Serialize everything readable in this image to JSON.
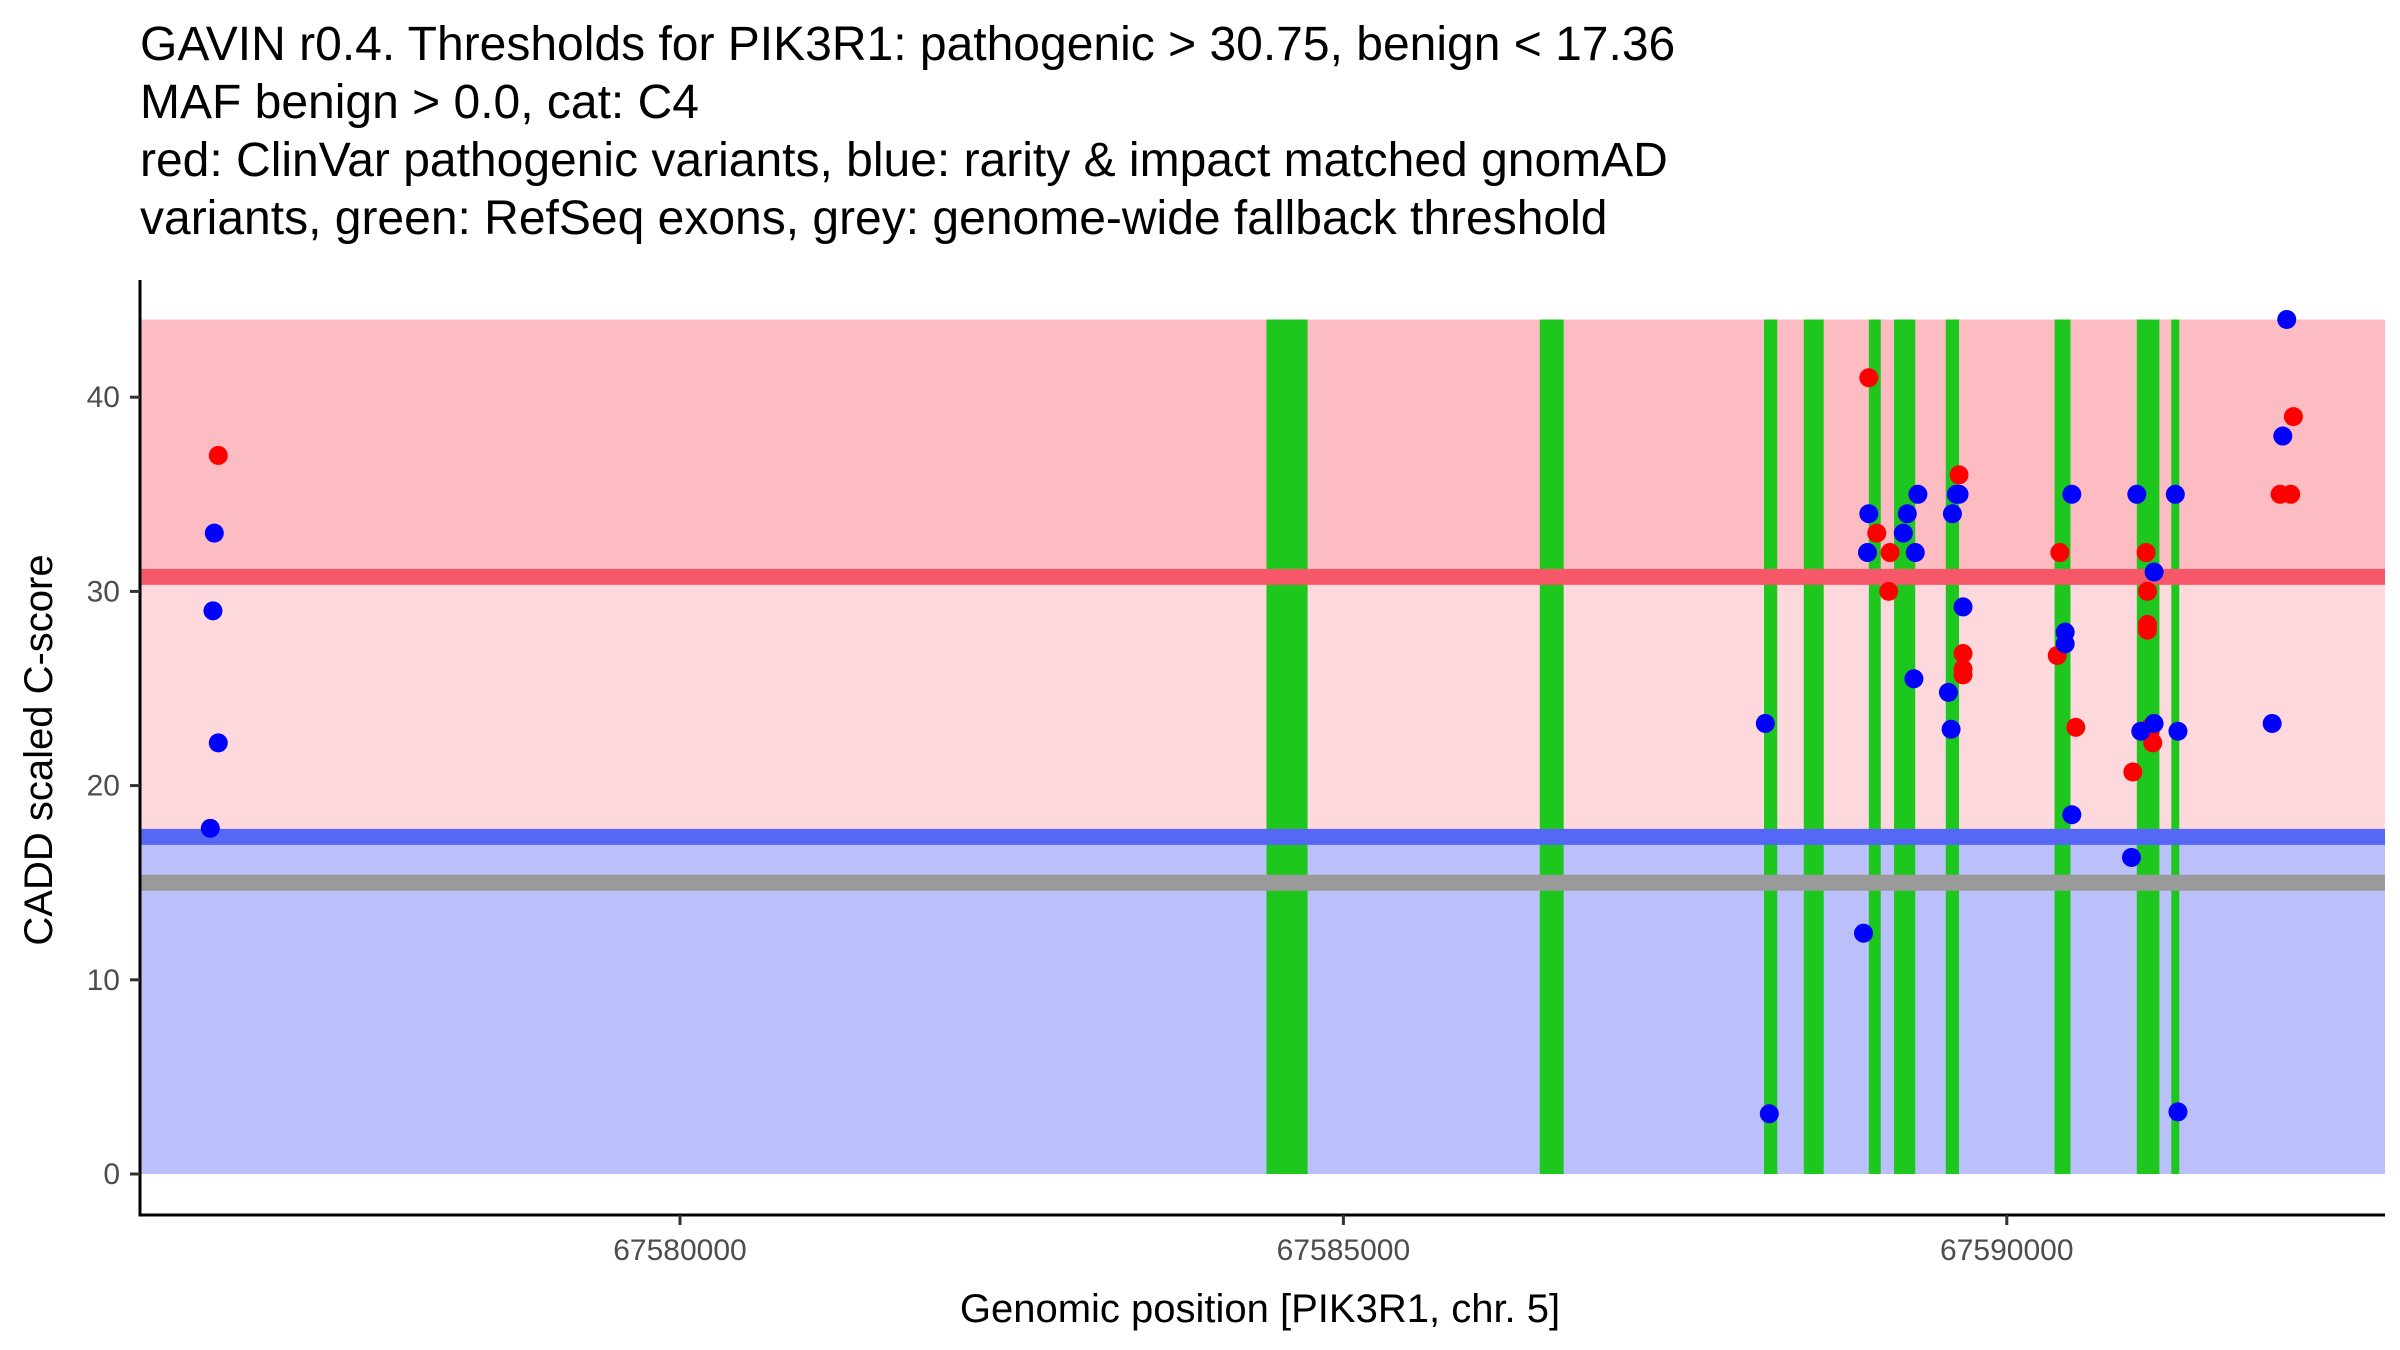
{
  "chart_data": {
    "type": "scatter",
    "title_lines": [
      "GAVIN r0.4. Thresholds for PIK3R1: pathogenic > 30.75, benign < 17.36",
      "MAF benign > 0.0, cat: C4",
      "red: ClinVar pathogenic variants, blue: rarity & impact matched gnomAD",
      "variants, green: RefSeq exons, grey: genome-wide fallback threshold"
    ],
    "xlabel": "Genomic position [PIK3R1, chr. 5]",
    "ylabel": "CADD scaled C-score",
    "xlim": [
      67575800,
      67592800
    ],
    "ylim": [
      -2,
      45
    ],
    "x_ticks": [
      67580000,
      67585000,
      67590000
    ],
    "y_ticks": [
      0,
      10,
      20,
      30,
      40
    ],
    "grid": false,
    "colors": {
      "pathogenic_region": "#fdbcc2",
      "intermediate_region": "#fdd9de",
      "benign_region": "#bbc0fb",
      "pathogenic_threshold": "#f75869",
      "benign_threshold": "#5468f5",
      "fallback_threshold": "#9a9a9a",
      "exons": "#1ec71e",
      "pathogenic_points": "#ff0000",
      "gnomad_points": "#0000ff"
    },
    "regions": {
      "pathogenic": [
        30.75,
        44
      ],
      "intermediate": [
        17.36,
        30.75
      ],
      "benign": [
        0,
        17.36
      ]
    },
    "thresholds": [
      {
        "name": "pathogenic",
        "value": 30.75
      },
      {
        "name": "benign",
        "value": 17.36
      },
      {
        "name": "fallback",
        "value": 15.0
      }
    ],
    "exons": [
      [
        67584420,
        67584730
      ],
      [
        67586480,
        67586660
      ],
      [
        67588170,
        67588270
      ],
      [
        67588470,
        67588620
      ],
      [
        67588960,
        67589050
      ],
      [
        67589150,
        67589310
      ],
      [
        67589540,
        67589640
      ],
      [
        67590360,
        67590480
      ],
      [
        67590980,
        67591150
      ],
      [
        67591240,
        67591300
      ]
    ],
    "series": [
      {
        "name": "ClinVar pathogenic",
        "color": "#ff0000",
        "points": [
          [
            67576520,
            37.0
          ],
          [
            67588960,
            41.0
          ],
          [
            67589020,
            33.0
          ],
          [
            67589120,
            32.0
          ],
          [
            67589110,
            30.0
          ],
          [
            67589640,
            36.0
          ],
          [
            67589670,
            26.8
          ],
          [
            67589670,
            26.0
          ],
          [
            67589670,
            25.7
          ],
          [
            67590400,
            32.0
          ],
          [
            67590380,
            26.7
          ],
          [
            67590520,
            23.0
          ],
          [
            67590950,
            20.7
          ],
          [
            67591050,
            32.0
          ],
          [
            67591060,
            30.0
          ],
          [
            67591060,
            28.3
          ],
          [
            67591060,
            28.0
          ],
          [
            67591080,
            23.0
          ],
          [
            67591080,
            22.8
          ],
          [
            67591100,
            22.2
          ],
          [
            67592060,
            35.0
          ],
          [
            67592140,
            35.0
          ],
          [
            67592160,
            39.0
          ]
        ]
      },
      {
        "name": "gnomAD rarity & impact matched",
        "color": "#0000ff",
        "points": [
          [
            67576490,
            33.0
          ],
          [
            67576480,
            29.0
          ],
          [
            67576520,
            22.2
          ],
          [
            67576460,
            17.8
          ],
          [
            67588180,
            23.2
          ],
          [
            67588210,
            3.1
          ],
          [
            67588960,
            34.0
          ],
          [
            67588950,
            32.0
          ],
          [
            67588920,
            12.4
          ],
          [
            67589220,
            33.0
          ],
          [
            67589250,
            34.0
          ],
          [
            67589330,
            35.0
          ],
          [
            67589310,
            32.0
          ],
          [
            67589300,
            25.5
          ],
          [
            67589560,
            24.8
          ],
          [
            67589590,
            34.0
          ],
          [
            67589620,
            35.0
          ],
          [
            67589640,
            35.0
          ],
          [
            67589670,
            29.2
          ],
          [
            67589580,
            22.9
          ],
          [
            67590440,
            27.9
          ],
          [
            67590440,
            27.3
          ],
          [
            67590490,
            35.0
          ],
          [
            67590490,
            18.5
          ],
          [
            67590980,
            35.0
          ],
          [
            67591010,
            22.8
          ],
          [
            67591110,
            31.0
          ],
          [
            67591110,
            23.2
          ],
          [
            67590940,
            16.3
          ],
          [
            67591270,
            35.0
          ],
          [
            67591290,
            22.8
          ],
          [
            67591290,
            3.2
          ],
          [
            67592110,
            44.0
          ],
          [
            67592080,
            38.0
          ],
          [
            67592000,
            23.2
          ]
        ]
      }
    ]
  }
}
